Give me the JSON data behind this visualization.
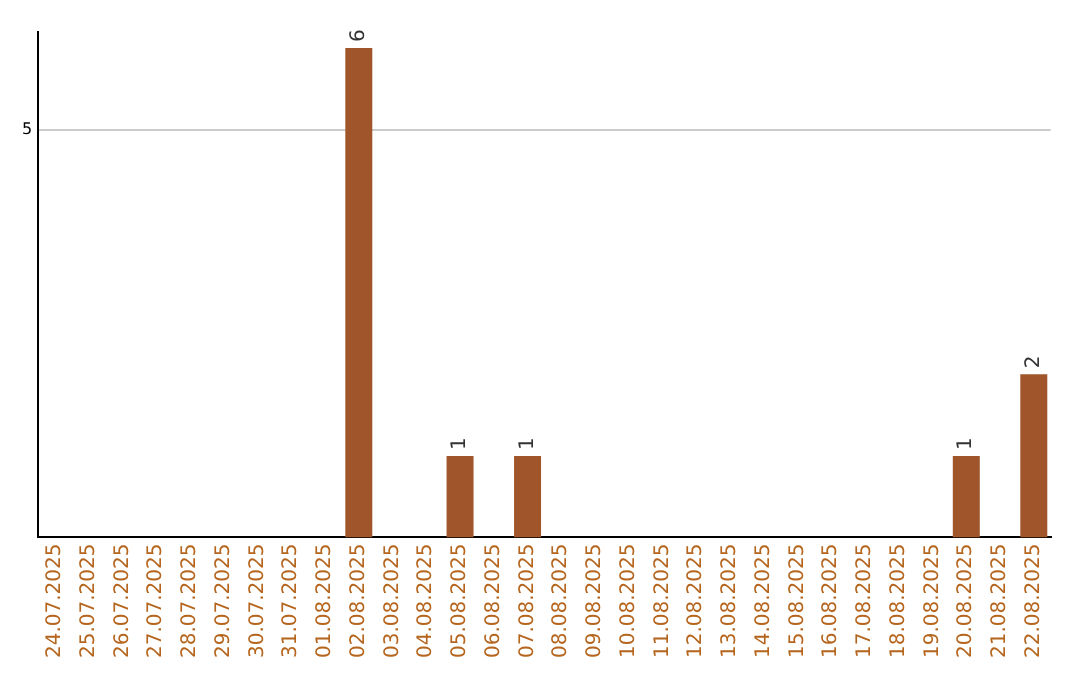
{
  "chart_data": {
    "type": "bar",
    "categories": [
      "24.07.2025",
      "25.07.2025",
      "26.07.2025",
      "27.07.2025",
      "28.07.2025",
      "29.07.2025",
      "30.07.2025",
      "31.07.2025",
      "01.08.2025",
      "02.08.2025",
      "03.08.2025",
      "04.08.2025",
      "05.08.2025",
      "06.08.2025",
      "07.08.2025",
      "08.08.2025",
      "09.08.2025",
      "10.08.2025",
      "11.08.2025",
      "12.08.2025",
      "13.08.2025",
      "14.08.2025",
      "15.08.2025",
      "16.08.2025",
      "17.08.2025",
      "18.08.2025",
      "19.08.2025",
      "20.08.2025",
      "21.08.2025",
      "22.08.2025"
    ],
    "values": [
      0,
      0,
      0,
      0,
      0,
      0,
      0,
      0,
      0,
      6,
      0,
      0,
      1,
      0,
      1,
      0,
      0,
      0,
      0,
      0,
      0,
      0,
      0,
      0,
      0,
      0,
      0,
      1,
      0,
      2
    ],
    "value_labels": [
      null,
      null,
      null,
      null,
      null,
      null,
      null,
      null,
      null,
      "6",
      null,
      null,
      "1",
      null,
      "1",
      null,
      null,
      null,
      null,
      null,
      null,
      null,
      null,
      null,
      null,
      null,
      null,
      "1",
      null,
      "2"
    ],
    "color": "#a0562a",
    "ylim": [
      0,
      6.2
    ],
    "yticks": [
      5
    ],
    "grid": "y",
    "legend": false
  }
}
